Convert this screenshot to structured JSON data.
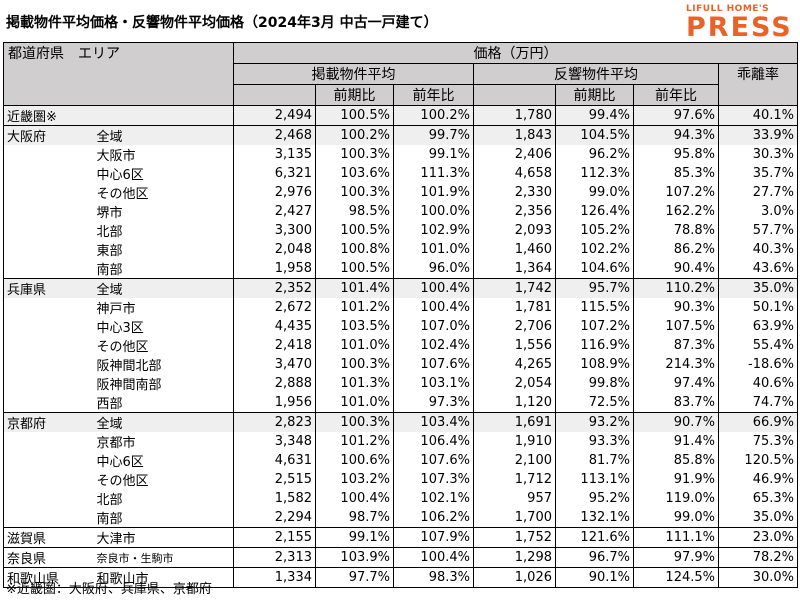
{
  "title": "掲載物件平均価格・反響物件平均価格（2024年3月 中古一戸建て）",
  "logo": {
    "top": "LIFULL HOME'S",
    "main": "PRESS"
  },
  "header": {
    "region": "都道府県　エリア",
    "price": "価格（万円）",
    "listing": "掲載物件平均",
    "response": "反響物件平均",
    "divergence": "乖離率",
    "qoq": "前期比",
    "yoy": "前年比"
  },
  "rows": [
    {
      "pref": "近畿圏※",
      "area": "",
      "lp": "2,494",
      "lq": "100.5%",
      "ly": "100.2%",
      "rp": "1,780",
      "rq": "99.4%",
      "ry": "97.6%",
      "dv": "40.1%"
    },
    {
      "pref": "大阪府",
      "area": "全域",
      "lp": "2,468",
      "lq": "100.2%",
      "ly": "99.7%",
      "rp": "1,843",
      "rq": "104.5%",
      "ry": "94.3%",
      "dv": "33.9%"
    },
    {
      "pref": "",
      "area": "大阪市",
      "lp": "3,135",
      "lq": "100.3%",
      "ly": "99.1%",
      "rp": "2,406",
      "rq": "96.2%",
      "ry": "95.8%",
      "dv": "30.3%"
    },
    {
      "pref": "",
      "area": "中心6区",
      "lp": "6,321",
      "lq": "103.6%",
      "ly": "111.3%",
      "rp": "4,658",
      "rq": "112.3%",
      "ry": "85.3%",
      "dv": "35.7%"
    },
    {
      "pref": "",
      "area": "その他区",
      "lp": "2,976",
      "lq": "100.3%",
      "ly": "101.9%",
      "rp": "2,330",
      "rq": "99.0%",
      "ry": "107.2%",
      "dv": "27.7%"
    },
    {
      "pref": "",
      "area": "堺市",
      "lp": "2,427",
      "lq": "98.5%",
      "ly": "100.0%",
      "rp": "2,356",
      "rq": "126.4%",
      "ry": "162.2%",
      "dv": "3.0%"
    },
    {
      "pref": "",
      "area": "北部",
      "lp": "3,300",
      "lq": "100.5%",
      "ly": "102.9%",
      "rp": "2,093",
      "rq": "105.2%",
      "ry": "78.8%",
      "dv": "57.7%"
    },
    {
      "pref": "",
      "area": "東部",
      "lp": "2,048",
      "lq": "100.8%",
      "ly": "101.0%",
      "rp": "1,460",
      "rq": "102.2%",
      "ry": "86.2%",
      "dv": "40.3%"
    },
    {
      "pref": "",
      "area": "南部",
      "lp": "1,958",
      "lq": "100.5%",
      "ly": "96.0%",
      "rp": "1,364",
      "rq": "104.6%",
      "ry": "90.4%",
      "dv": "43.6%"
    },
    {
      "pref": "兵庫県",
      "area": "全域",
      "lp": "2,352",
      "lq": "101.4%",
      "ly": "100.4%",
      "rp": "1,742",
      "rq": "95.7%",
      "ry": "110.2%",
      "dv": "35.0%"
    },
    {
      "pref": "",
      "area": "神戸市",
      "lp": "2,672",
      "lq": "101.2%",
      "ly": "100.4%",
      "rp": "1,781",
      "rq": "115.5%",
      "ry": "90.3%",
      "dv": "50.1%"
    },
    {
      "pref": "",
      "area": "中心3区",
      "lp": "4,435",
      "lq": "103.5%",
      "ly": "107.0%",
      "rp": "2,706",
      "rq": "107.2%",
      "ry": "107.5%",
      "dv": "63.9%"
    },
    {
      "pref": "",
      "area": "その他区",
      "lp": "2,418",
      "lq": "101.0%",
      "ly": "102.4%",
      "rp": "1,556",
      "rq": "116.9%",
      "ry": "87.3%",
      "dv": "55.4%"
    },
    {
      "pref": "",
      "area": "阪神間北部",
      "lp": "3,470",
      "lq": "100.3%",
      "ly": "107.6%",
      "rp": "4,265",
      "rq": "108.9%",
      "ry": "214.3%",
      "dv": "-18.6%"
    },
    {
      "pref": "",
      "area": "阪神間南部",
      "lp": "2,888",
      "lq": "101.3%",
      "ly": "103.1%",
      "rp": "2,054",
      "rq": "99.8%",
      "ry": "97.4%",
      "dv": "40.6%"
    },
    {
      "pref": "",
      "area": "西部",
      "lp": "1,956",
      "lq": "101.0%",
      "ly": "97.3%",
      "rp": "1,120",
      "rq": "72.5%",
      "ry": "83.7%",
      "dv": "74.7%"
    },
    {
      "pref": "京都府",
      "area": "全域",
      "lp": "2,823",
      "lq": "100.3%",
      "ly": "103.4%",
      "rp": "1,691",
      "rq": "93.2%",
      "ry": "90.7%",
      "dv": "66.9%"
    },
    {
      "pref": "",
      "area": "京都市",
      "lp": "3,348",
      "lq": "101.2%",
      "ly": "106.4%",
      "rp": "1,910",
      "rq": "93.3%",
      "ry": "91.4%",
      "dv": "75.3%"
    },
    {
      "pref": "",
      "area": "中心6区",
      "lp": "4,631",
      "lq": "100.6%",
      "ly": "107.6%",
      "rp": "2,100",
      "rq": "81.7%",
      "ry": "85.8%",
      "dv": "120.5%"
    },
    {
      "pref": "",
      "area": "その他区",
      "lp": "2,515",
      "lq": "103.2%",
      "ly": "107.3%",
      "rp": "1,712",
      "rq": "113.1%",
      "ry": "91.9%",
      "dv": "46.9%"
    },
    {
      "pref": "",
      "area": "北部",
      "lp": "1,582",
      "lq": "100.4%",
      "ly": "102.1%",
      "rp": "957",
      "rq": "95.2%",
      "ry": "119.0%",
      "dv": "65.3%"
    },
    {
      "pref": "",
      "area": "南部",
      "lp": "2,294",
      "lq": "98.7%",
      "ly": "106.2%",
      "rp": "1,700",
      "rq": "132.1%",
      "ry": "99.0%",
      "dv": "35.0%"
    },
    {
      "pref": "滋賀県",
      "area": "大津市",
      "lp": "2,155",
      "lq": "99.1%",
      "ly": "107.9%",
      "rp": "1,752",
      "rq": "121.6%",
      "ry": "111.1%",
      "dv": "23.0%"
    },
    {
      "pref": "奈良県",
      "area": "奈良市・生駒市",
      "lp": "2,313",
      "lq": "103.9%",
      "ly": "100.4%",
      "rp": "1,298",
      "rq": "96.7%",
      "ry": "97.9%",
      "dv": "78.2%"
    },
    {
      "pref": "和歌山県",
      "area": "和歌山市",
      "lp": "1,334",
      "lq": "97.7%",
      "ly": "98.3%",
      "rp": "1,026",
      "rq": "90.1%",
      "ry": "124.5%",
      "dv": "30.0%"
    }
  ],
  "footnote": "※近畿圏：大阪府、兵庫県、京都府"
}
